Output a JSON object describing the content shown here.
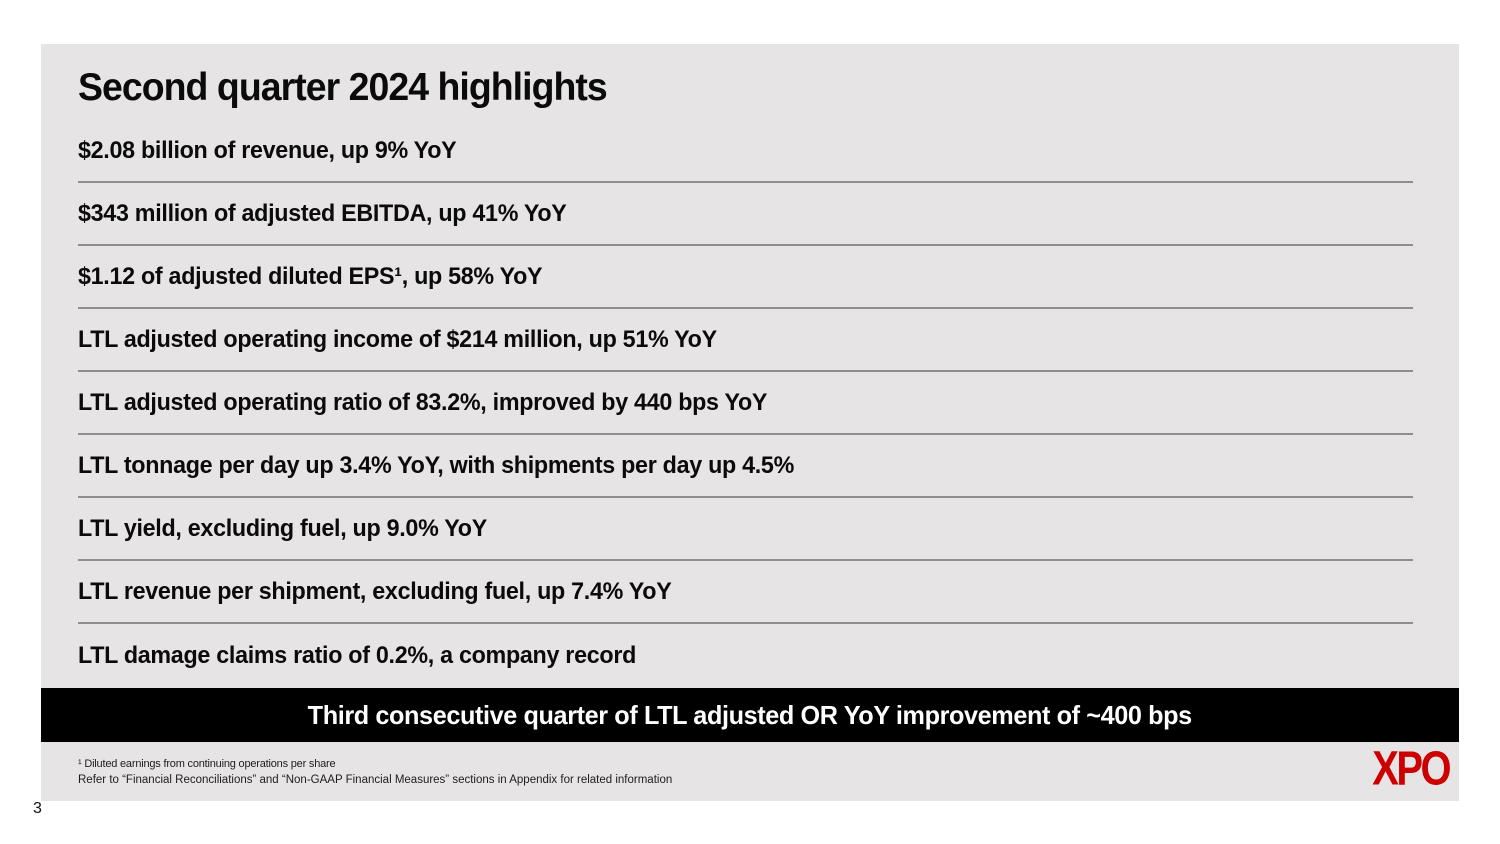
{
  "slide": {
    "title": "Second quarter 2024 highlights",
    "highlights": [
      "$2.08 billion of revenue, up 9% YoY",
      "$343 million of adjusted EBITDA, up 41% YoY",
      "$1.12 of adjusted diluted EPS¹, up 58% YoY",
      "LTL adjusted operating income of $214 million, up 51% YoY",
      "LTL adjusted operating ratio of 83.2%, improved by 440 bps YoY",
      "LTL tonnage per day up 3.4% YoY, with shipments per day up 4.5%",
      "LTL yield, excluding fuel, up 9.0% YoY",
      "LTL revenue per shipment, excluding fuel, up 7.4% YoY",
      "LTL damage claims ratio of 0.2%, a company record"
    ],
    "banner_text": "Third consecutive quarter of LTL adjusted OR YoY improvement of ~400 bps",
    "footnotes": [
      "¹ Diluted earnings from continuing operations per share",
      "Refer to “Financial Reconciliations” and “Non-GAAP Financial Measures” sections in Appendix for related information"
    ],
    "logo_text": "XPO",
    "page_number": "3",
    "colors": {
      "card_background": "#E6E4E4",
      "banner_background": "#000000",
      "divider": "#8E8E8E",
      "logo_red": "#CC0001",
      "text": "#000000"
    }
  }
}
